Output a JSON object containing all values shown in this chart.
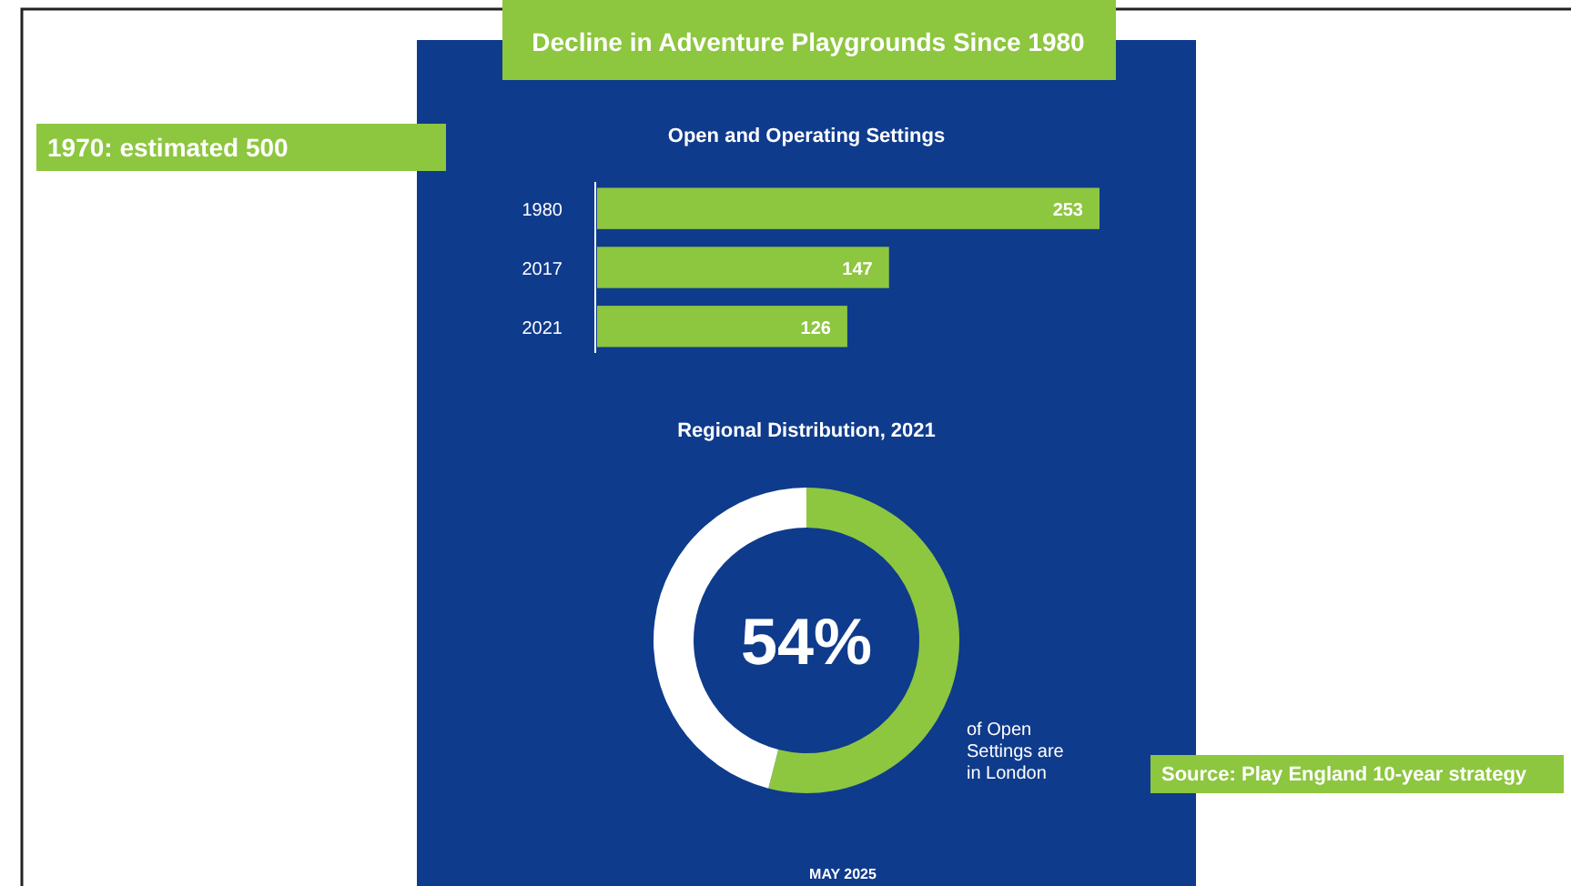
{
  "chart_data": [
    {
      "type": "bar",
      "orientation": "horizontal",
      "title": "Decline in Adventure Playgrounds Since 1980",
      "subtitle": "Open and Operating Settings",
      "categories": [
        "1980",
        "2017",
        "2021"
      ],
      "values": [
        253,
        147,
        126
      ],
      "color": "#8dc63f",
      "data_labels": true,
      "annotations": [
        "1970: estimated 500"
      ]
    },
    {
      "type": "donut",
      "title": "Regional Distribution, 2021",
      "categories": [
        null,
        null
      ],
      "values": [
        54,
        46
      ],
      "colors": [
        "#8dc63f",
        "#ffffff"
      ],
      "value_labels": [
        "54%",
        null
      ],
      "annotations": [
        "of Open Settings are in London",
        "MAY 2025",
        "Source: Play England 10-year strategy"
      ]
    }
  ]
}
